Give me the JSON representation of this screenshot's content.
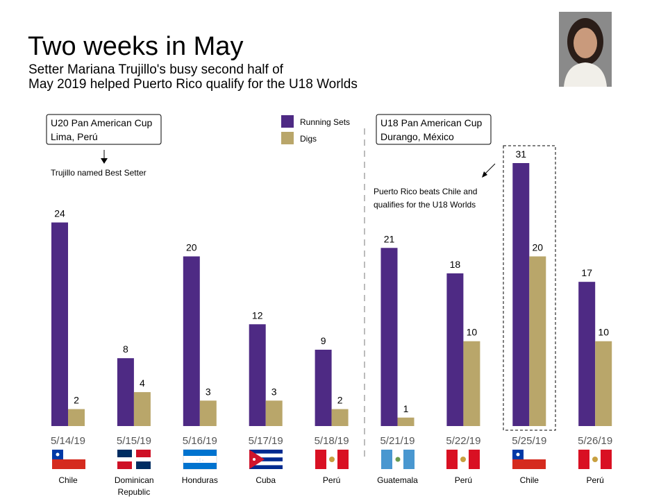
{
  "chart_data": {
    "type": "bar",
    "title": "Two weeks in May",
    "subtitle": [
      "Setter Mariana Trujillo's busy second half of",
      "May 2019 helped Puerto Rico qualify for the U18 Worlds"
    ],
    "categories": [
      "5/14/19",
      "5/15/19",
      "5/16/19",
      "5/17/19",
      "5/18/19",
      "5/21/19",
      "5/22/19",
      "5/25/19",
      "5/26/19"
    ],
    "countries": [
      "Chile",
      "Dominican Republic",
      "Honduras",
      "Cuba",
      "Perú",
      "Guatemala",
      "Perú",
      "Chile",
      "Perú"
    ],
    "series": [
      {
        "name": "Running Sets",
        "color": "#4e2a84",
        "values": [
          24,
          8,
          20,
          12,
          9,
          21,
          18,
          31,
          17
        ]
      },
      {
        "name": "Digs",
        "color": "#b9a66a",
        "values": [
          2,
          4,
          3,
          3,
          2,
          1,
          10,
          20,
          10
        ]
      }
    ],
    "annotations": {
      "u20": [
        "U20 Pan American Cup",
        "Lima,  Perú"
      ],
      "u18": [
        "U18 Pan American Cup",
        "Durango,  México"
      ],
      "best_setter": "Trujillo named Best Setter",
      "qualify": [
        "Puerto Rico beats Chile and",
        "qualifies for the U18 Worlds"
      ]
    }
  }
}
